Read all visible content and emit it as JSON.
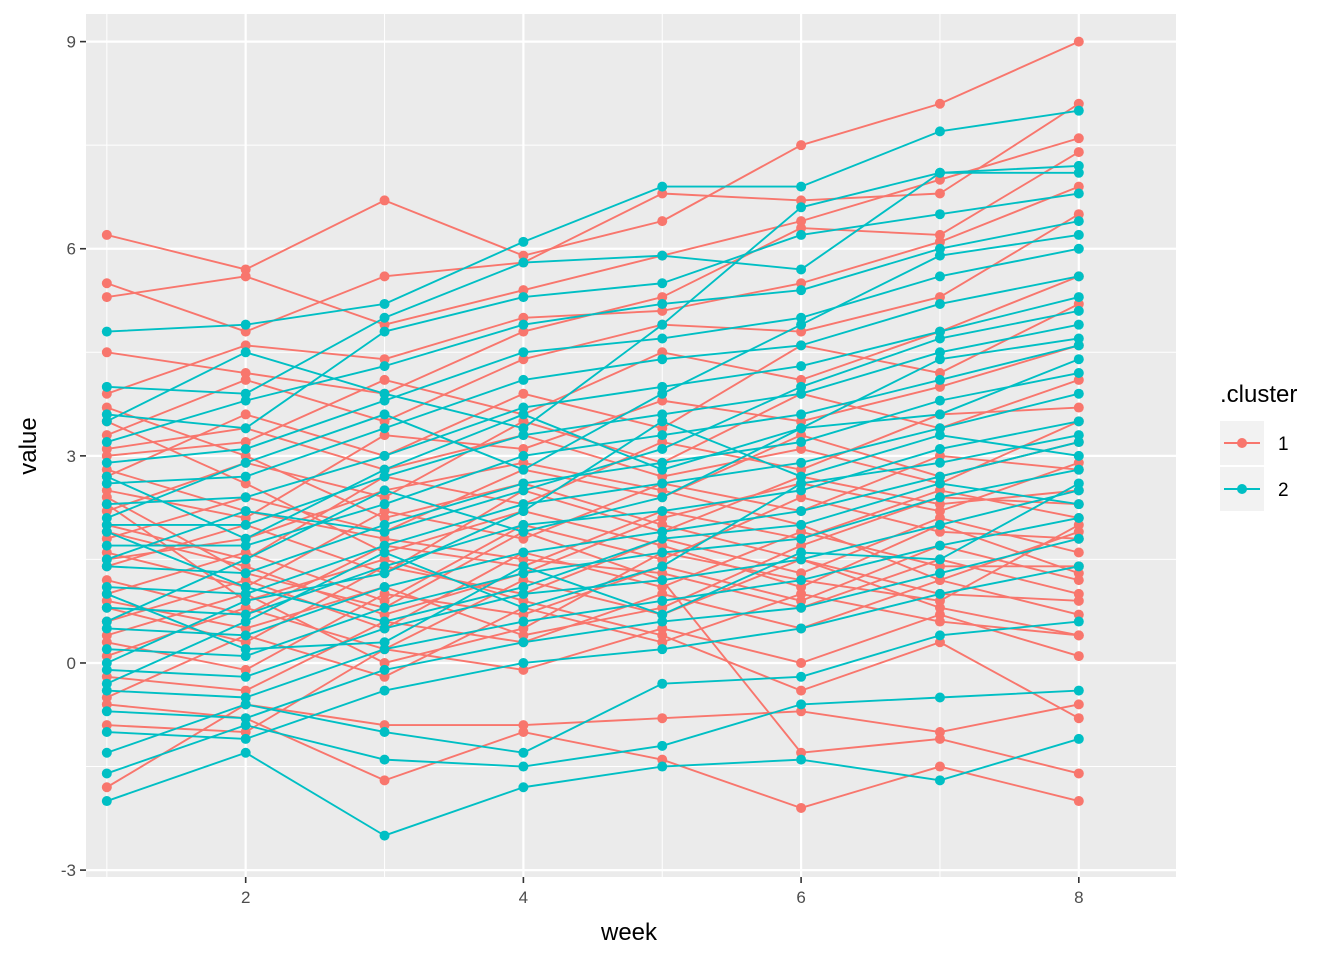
{
  "chart_data": {
    "type": "line",
    "xlabel": "week",
    "ylabel": "value",
    "xlim": [
      0.85,
      8.7
    ],
    "ylim": [
      -3.1,
      9.4
    ],
    "x_ticks": [
      2,
      4,
      6,
      8
    ],
    "x_tick_labels": [
      "2",
      "4",
      "6",
      "8"
    ],
    "y_ticks": [
      -3,
      0,
      3,
      6,
      9
    ],
    "y_tick_labels": [
      "-3",
      "0",
      "3",
      "6",
      "9"
    ],
    "grid": true,
    "legend": {
      "title": ".cluster",
      "position": "right",
      "entries": [
        "1",
        "2"
      ]
    },
    "colors": {
      "1": "#F8766D",
      "2": "#00BFC4",
      "panel": "#EBEBEB",
      "grid": "#FFFFFF"
    },
    "weeks": [
      1,
      2,
      3,
      4,
      5,
      6,
      7,
      8
    ],
    "series": [
      {
        "cluster": "1",
        "values": [
          6.2,
          5.7,
          6.7,
          5.9,
          6.4,
          7.5,
          8.1,
          9.0
        ]
      },
      {
        "cluster": "1",
        "values": [
          5.5,
          4.8,
          5.6,
          5.8,
          6.8,
          6.7,
          6.8,
          8.1
        ]
      },
      {
        "cluster": "1",
        "values": [
          5.3,
          5.6,
          4.9,
          5.4,
          5.9,
          6.4,
          7.0,
          7.6
        ]
      },
      {
        "cluster": "1",
        "values": [
          4.5,
          4.2,
          3.9,
          4.8,
          5.3,
          6.3,
          6.2,
          7.4
        ]
      },
      {
        "cluster": "1",
        "values": [
          3.9,
          4.6,
          4.4,
          5.0,
          5.1,
          5.5,
          6.1,
          6.9
        ]
      },
      {
        "cluster": "1",
        "values": [
          3.3,
          4.1,
          3.5,
          4.4,
          4.9,
          4.8,
          5.3,
          6.5
        ]
      },
      {
        "cluster": "1",
        "values": [
          3.0,
          3.2,
          4.1,
          3.6,
          4.5,
          4.1,
          4.8,
          5.6
        ]
      },
      {
        "cluster": "1",
        "values": [
          2.7,
          3.6,
          3.0,
          3.9,
          3.4,
          4.6,
          4.2,
          5.2
        ]
      },
      {
        "cluster": "1",
        "values": [
          2.5,
          2.1,
          3.3,
          3.1,
          3.8,
          3.5,
          4.0,
          4.6
        ]
      },
      {
        "cluster": "1",
        "values": [
          2.2,
          2.9,
          2.4,
          3.5,
          2.9,
          3.9,
          3.4,
          4.1
        ]
      },
      {
        "cluster": "1",
        "values": [
          2.0,
          1.5,
          2.7,
          2.3,
          3.2,
          2.8,
          3.6,
          3.7
        ]
      },
      {
        "cluster": "1",
        "values": [
          1.8,
          2.4,
          1.9,
          2.8,
          2.4,
          3.3,
          2.7,
          3.2
        ]
      },
      {
        "cluster": "1",
        "values": [
          1.6,
          1.1,
          2.2,
          1.8,
          2.6,
          2.2,
          3.0,
          2.8
        ]
      },
      {
        "cluster": "1",
        "values": [
          1.4,
          2.0,
          1.3,
          2.5,
          1.9,
          2.7,
          2.3,
          2.5
        ]
      },
      {
        "cluster": "1",
        "values": [
          1.2,
          0.7,
          1.7,
          1.4,
          2.2,
          1.8,
          2.5,
          2.1
        ]
      },
      {
        "cluster": "1",
        "values": [
          1.0,
          1.6,
          0.9,
          2.0,
          1.5,
          2.4,
          1.9,
          1.8
        ]
      },
      {
        "cluster": "1",
        "values": [
          0.8,
          0.3,
          1.4,
          1.0,
          1.8,
          1.3,
          2.1,
          1.6
        ]
      },
      {
        "cluster": "1",
        "values": [
          0.6,
          1.2,
          0.5,
          1.6,
          1.1,
          1.9,
          1.4,
          1.4
        ]
      },
      {
        "cluster": "1",
        "values": [
          0.3,
          -0.1,
          1.0,
          0.7,
          1.4,
          0.9,
          1.7,
          1.2
        ]
      },
      {
        "cluster": "1",
        "values": [
          0.1,
          0.8,
          0.2,
          1.2,
          0.7,
          1.5,
          1.0,
          0.9
        ]
      },
      {
        "cluster": "1",
        "values": [
          -0.2,
          -0.4,
          0.6,
          0.3,
          1.0,
          0.5,
          1.2,
          0.7
        ]
      },
      {
        "cluster": "1",
        "values": [
          -0.5,
          0.4,
          -0.2,
          0.8,
          0.3,
          1.0,
          0.6,
          0.4
        ]
      },
      {
        "cluster": "1",
        "values": [
          -0.9,
          -1.0,
          0.2,
          -0.1,
          0.5,
          0.0,
          0.7,
          0.1
        ]
      },
      {
        "cluster": "1",
        "values": [
          -1.8,
          -0.6,
          -0.9,
          -0.9,
          -0.8,
          -0.7,
          -1.0,
          -0.6
        ]
      },
      {
        "cluster": "1",
        "values": [
          -0.6,
          -0.8,
          -1.7,
          -1.0,
          -1.4,
          -2.1,
          -1.5,
          -2.0
        ]
      },
      {
        "cluster": "1",
        "values": [
          2.4,
          1.3,
          0.8,
          1.9,
          1.2,
          -1.3,
          -1.1,
          -1.6
        ]
      },
      {
        "cluster": "1",
        "values": [
          3.7,
          3.0,
          2.1,
          2.6,
          2.0,
          1.5,
          0.8,
          0.4
        ]
      },
      {
        "cluster": "1",
        "values": [
          3.5,
          2.6,
          1.6,
          2.2,
          1.7,
          1.1,
          2.0,
          1.3
        ]
      },
      {
        "cluster": "1",
        "values": [
          1.9,
          1.4,
          0.7,
          1.3,
          2.1,
          2.6,
          2.2,
          2.9
        ]
      },
      {
        "cluster": "1",
        "values": [
          2.8,
          2.2,
          1.8,
          1.5,
          1.3,
          0.8,
          1.5,
          1.0
        ]
      },
      {
        "cluster": "1",
        "values": [
          0.9,
          0.5,
          1.1,
          0.4,
          0.8,
          1.7,
          2.4,
          2.3
        ]
      },
      {
        "cluster": "1",
        "values": [
          1.5,
          1.8,
          2.5,
          2.9,
          2.5,
          2.0,
          1.2,
          1.9
        ]
      },
      {
        "cluster": "1",
        "values": [
          2.3,
          0.9,
          1.5,
          0.9,
          0.4,
          -0.4,
          0.3,
          -0.8
        ]
      },
      {
        "cluster": "1",
        "values": [
          3.1,
          3.4,
          2.8,
          3.3,
          2.7,
          3.1,
          2.6,
          3.5
        ]
      },
      {
        "cluster": "1",
        "values": [
          0.4,
          1.0,
          0.0,
          0.5,
          1.6,
          1.2,
          0.9,
          2.0
        ]
      },
      {
        "cluster": "2",
        "values": [
          4.8,
          4.9,
          5.2,
          6.1,
          6.9,
          6.9,
          7.7,
          8.0
        ]
      },
      {
        "cluster": "2",
        "values": [
          4.0,
          3.9,
          5.0,
          5.8,
          5.9,
          5.7,
          7.1,
          7.1
        ]
      },
      {
        "cluster": "2",
        "values": [
          3.6,
          3.4,
          4.8,
          5.3,
          5.5,
          6.2,
          6.5,
          6.8
        ]
      },
      {
        "cluster": "2",
        "values": [
          3.2,
          3.8,
          4.3,
          4.9,
          5.2,
          5.4,
          6.0,
          6.4
        ]
      },
      {
        "cluster": "2",
        "values": [
          2.9,
          3.1,
          3.8,
          4.5,
          4.7,
          5.0,
          5.6,
          6.0
        ]
      },
      {
        "cluster": "2",
        "values": [
          2.6,
          2.7,
          3.4,
          4.1,
          4.4,
          4.6,
          5.2,
          5.6
        ]
      },
      {
        "cluster": "2",
        "values": [
          2.3,
          2.4,
          3.0,
          3.7,
          4.0,
          4.3,
          4.8,
          5.3
        ]
      },
      {
        "cluster": "2",
        "values": [
          2.0,
          2.0,
          2.7,
          3.3,
          3.6,
          3.9,
          4.5,
          4.9
        ]
      },
      {
        "cluster": "2",
        "values": [
          1.7,
          1.7,
          2.3,
          3.0,
          3.3,
          3.6,
          4.1,
          4.6
        ]
      },
      {
        "cluster": "2",
        "values": [
          1.4,
          1.3,
          2.0,
          2.6,
          2.9,
          3.2,
          3.8,
          4.2
        ]
      },
      {
        "cluster": "2",
        "values": [
          1.1,
          1.0,
          1.7,
          2.3,
          2.6,
          2.9,
          3.4,
          3.9
        ]
      },
      {
        "cluster": "2",
        "values": [
          0.8,
          0.7,
          1.4,
          2.0,
          2.2,
          2.5,
          3.1,
          3.5
        ]
      },
      {
        "cluster": "2",
        "values": [
          0.5,
          0.4,
          1.1,
          1.6,
          1.9,
          2.2,
          2.7,
          3.2
        ]
      },
      {
        "cluster": "2",
        "values": [
          0.2,
          0.1,
          0.8,
          1.3,
          1.6,
          1.8,
          2.4,
          2.8
        ]
      },
      {
        "cluster": "2",
        "values": [
          -0.1,
          -0.2,
          0.5,
          1.0,
          1.2,
          1.5,
          2.0,
          2.5
        ]
      },
      {
        "cluster": "2",
        "values": [
          -0.4,
          -0.5,
          0.2,
          0.6,
          0.9,
          1.2,
          1.7,
          2.1
        ]
      },
      {
        "cluster": "2",
        "values": [
          -0.7,
          -0.8,
          -0.1,
          0.3,
          0.6,
          0.8,
          1.3,
          1.8
        ]
      },
      {
        "cluster": "2",
        "values": [
          -1.0,
          -1.1,
          -0.4,
          0.0,
          0.2,
          0.5,
          1.0,
          1.4
        ]
      },
      {
        "cluster": "2",
        "values": [
          -1.3,
          -0.6,
          -1.0,
          -1.3,
          -0.3,
          -0.2,
          0.4,
          0.6
        ]
      },
      {
        "cluster": "2",
        "values": [
          -2.0,
          -1.3,
          -2.5,
          -1.8,
          -1.5,
          -1.4,
          -1.7,
          -1.1
        ]
      },
      {
        "cluster": "2",
        "values": [
          -1.6,
          -0.9,
          -1.4,
          -1.5,
          -1.2,
          -0.6,
          -0.5,
          -0.4
        ]
      },
      {
        "cluster": "2",
        "values": [
          3.5,
          4.5,
          3.9,
          3.4,
          4.9,
          6.6,
          7.1,
          7.2
        ]
      },
      {
        "cluster": "2",
        "values": [
          2.1,
          2.9,
          3.6,
          2.8,
          3.9,
          4.9,
          5.9,
          6.2
        ]
      },
      {
        "cluster": "2",
        "values": [
          1.5,
          2.2,
          1.9,
          2.5,
          3.1,
          4.0,
          4.7,
          5.1
        ]
      },
      {
        "cluster": "2",
        "values": [
          0.6,
          1.5,
          2.5,
          1.9,
          2.4,
          3.4,
          3.6,
          4.4
        ]
      },
      {
        "cluster": "2",
        "values": [
          0.0,
          0.9,
          1.3,
          2.2,
          3.5,
          2.7,
          3.3,
          3.0
        ]
      },
      {
        "cluster": "2",
        "values": [
          1.9,
          1.1,
          0.6,
          1.1,
          1.8,
          2.0,
          2.6,
          2.3
        ]
      },
      {
        "cluster": "2",
        "values": [
          2.7,
          1.8,
          2.8,
          3.6,
          2.8,
          3.4,
          4.4,
          4.7
        ]
      },
      {
        "cluster": "2",
        "values": [
          -0.3,
          0.6,
          1.6,
          0.8,
          1.4,
          2.6,
          2.9,
          3.3
        ]
      },
      {
        "cluster": "2",
        "values": [
          1.0,
          0.2,
          0.3,
          1.4,
          0.7,
          1.6,
          1.5,
          2.6
        ]
      }
    ]
  }
}
